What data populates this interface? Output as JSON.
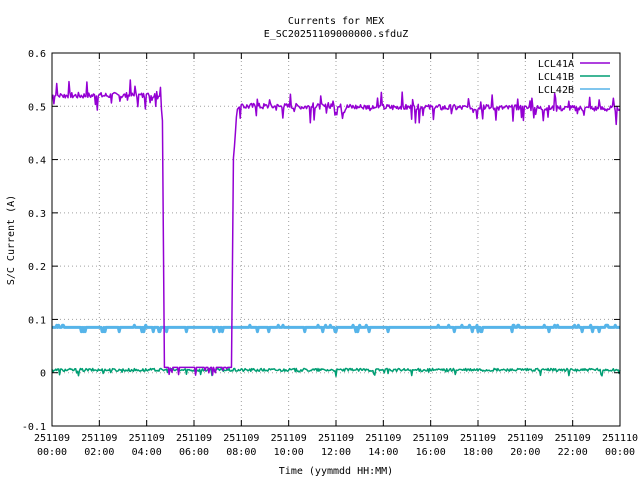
{
  "chart_data": {
    "type": "line",
    "title": "Currents for MEX",
    "subtitle": "E_SC20251109000000.sfduZ",
    "xlabel": "Time (yymmdd HH:MM)",
    "ylabel": "S/C Current (A)",
    "xlim_hours": [
      0,
      24
    ],
    "ylim": [
      -0.1,
      0.6
    ],
    "grid": true,
    "legend_position": "top-right",
    "y_ticks": [
      "-0.1",
      "0",
      "0.1",
      "0.2",
      "0.3",
      "0.4",
      "0.5",
      "0.6"
    ],
    "x_ticks": [
      {
        "date": "251109",
        "time": "00:00"
      },
      {
        "date": "251109",
        "time": "02:00"
      },
      {
        "date": "251109",
        "time": "04:00"
      },
      {
        "date": "251109",
        "time": "06:00"
      },
      {
        "date": "251109",
        "time": "08:00"
      },
      {
        "date": "251109",
        "time": "10:00"
      },
      {
        "date": "251109",
        "time": "12:00"
      },
      {
        "date": "251109",
        "time": "14:00"
      },
      {
        "date": "251109",
        "time": "16:00"
      },
      {
        "date": "251109",
        "time": "18:00"
      },
      {
        "date": "251109",
        "time": "20:00"
      },
      {
        "date": "251109",
        "time": "22:00"
      },
      {
        "date": "251110",
        "time": "00:00"
      }
    ],
    "series": [
      {
        "name": "LCL41A",
        "color": "#9400d3",
        "points": [
          [
            "00:00",
            0.52
          ],
          [
            "04:35",
            0.52
          ],
          [
            "04:40",
            0.47
          ],
          [
            "04:45",
            0.01
          ],
          [
            "07:35",
            0.01
          ],
          [
            "07:40",
            0.4
          ],
          [
            "07:50",
            0.5
          ],
          [
            "24:00",
            0.495
          ]
        ]
      },
      {
        "name": "LCL41B",
        "color": "#009e73",
        "points": [
          [
            "00:00",
            0.005
          ],
          [
            "24:00",
            0.005
          ]
        ]
      },
      {
        "name": "LCL42B",
        "color": "#56b4e9",
        "points": [
          [
            "00:00",
            0.085
          ],
          [
            "24:00",
            0.085
          ]
        ]
      }
    ]
  }
}
